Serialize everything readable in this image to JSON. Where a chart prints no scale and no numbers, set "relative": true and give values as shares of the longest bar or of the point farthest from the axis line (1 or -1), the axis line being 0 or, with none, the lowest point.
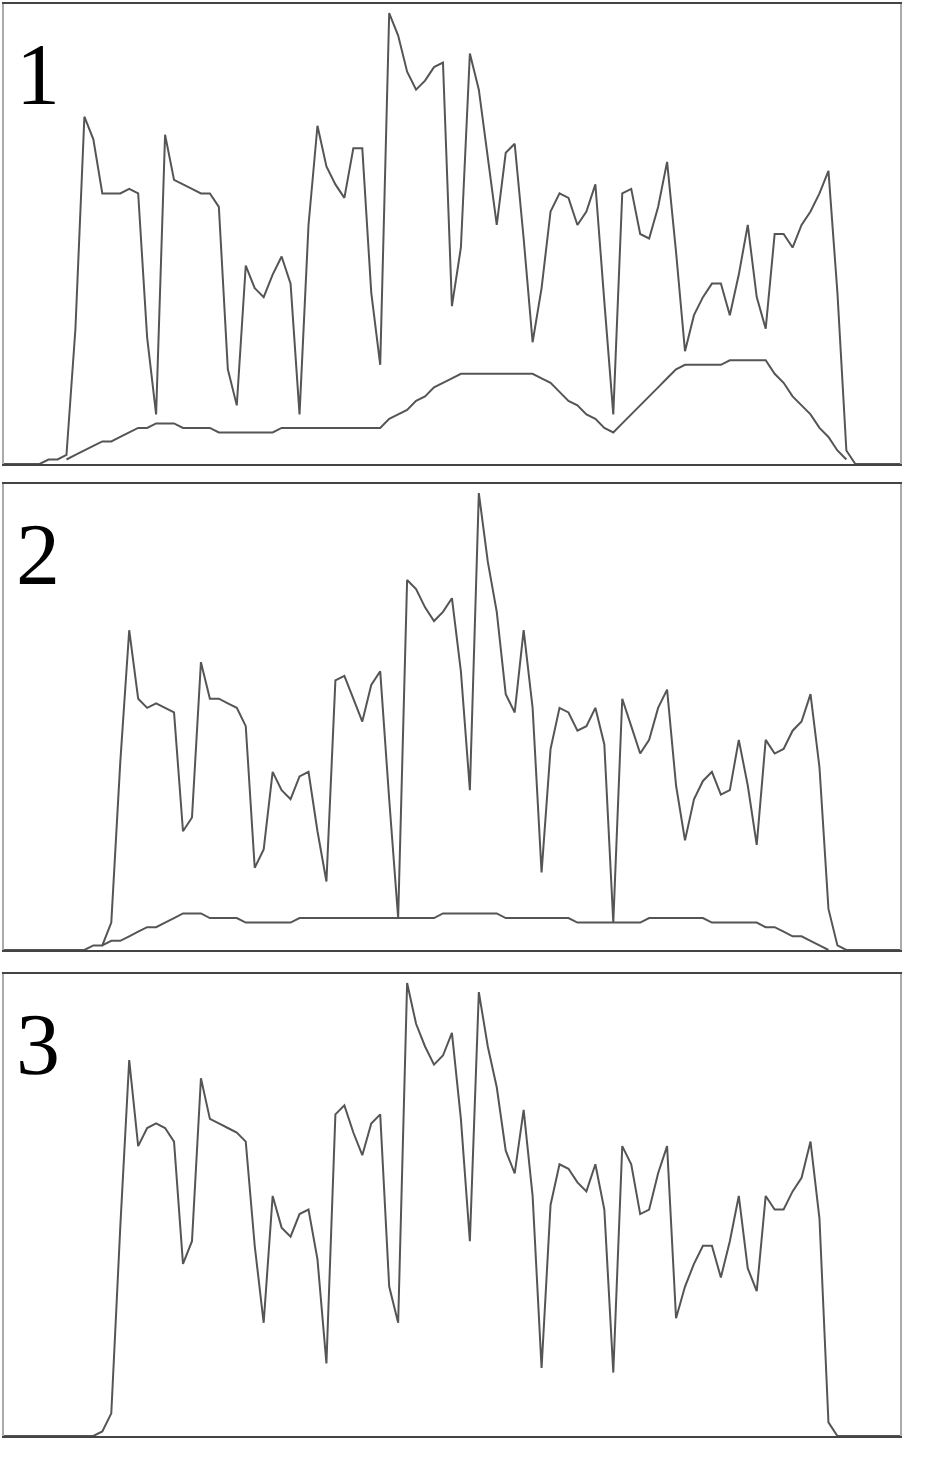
{
  "chart_data": [
    {
      "type": "line",
      "title": "1",
      "relative": true,
      "categories": [
        null,
        null,
        null,
        null,
        null,
        null,
        null,
        null,
        null,
        null,
        null,
        null,
        null,
        null,
        null,
        null,
        null,
        null,
        null,
        null,
        null,
        null,
        null,
        null,
        null,
        null,
        null,
        null,
        null,
        null,
        null,
        null,
        null,
        null,
        null,
        null,
        null,
        null,
        null,
        null,
        null,
        null,
        null,
        null,
        null,
        null,
        null,
        null,
        null,
        null,
        null,
        null,
        null,
        null,
        null,
        null,
        null,
        null,
        null,
        null,
        null,
        null,
        null,
        null,
        null,
        null,
        null,
        null,
        null,
        null,
        null,
        null,
        null,
        null,
        null,
        null,
        null,
        null,
        null,
        null,
        null,
        null,
        null,
        null,
        null,
        null,
        null,
        null,
        null,
        null,
        null,
        null,
        null,
        null,
        null,
        null,
        null,
        null,
        null,
        null,
        null
      ],
      "series": [
        {
          "color": "#555555",
          "values": [
            0,
            0,
            0,
            0,
            0,
            0.01,
            0.01,
            0.02,
            0.3,
            0.77,
            0.72,
            0.6,
            0.6,
            0.6,
            0.61,
            0.6,
            0.28,
            0.11,
            0.73,
            0.63,
            0.62,
            0.61,
            0.6,
            0.6,
            0.57,
            0.21,
            0.13,
            0.44,
            0.39,
            0.37,
            0.42,
            0.46,
            0.4,
            0.11,
            0.53,
            0.75,
            0.66,
            0.62,
            0.59,
            0.7,
            0.7,
            0.38,
            0.22,
            1.0,
            0.95,
            0.87,
            0.83,
            0.85,
            0.88,
            0.89,
            0.35,
            0.48,
            0.91,
            0.83,
            0.68,
            0.53,
            0.69,
            0.71,
            0.5,
            0.27,
            0.39,
            0.56,
            0.6,
            0.59,
            0.53,
            0.56,
            0.62,
            0.36,
            0.11,
            0.6,
            0.61,
            0.51,
            0.5,
            0.57,
            0.67,
            0.47,
            0.25,
            0.33,
            0.37,
            0.4,
            0.4,
            0.33,
            0.42,
            0.53,
            0.37,
            0.3,
            0.51,
            0.51,
            0.48,
            0.53,
            0.56,
            0.6,
            0.65,
            0.38,
            0.03,
            0,
            0,
            0,
            0,
            0,
            0
          ]
        },
        {
          "color": "#555555",
          "values": [
            null,
            null,
            null,
            null,
            null,
            null,
            null,
            0.01,
            0.02,
            0.03,
            0.04,
            0.05,
            0.05,
            0.06,
            0.07,
            0.08,
            0.08,
            0.09,
            0.09,
            0.09,
            0.08,
            0.08,
            0.08,
            0.08,
            0.07,
            0.07,
            0.07,
            0.07,
            0.07,
            0.07,
            0.07,
            0.08,
            0.08,
            0.08,
            0.08,
            0.08,
            0.08,
            0.08,
            0.08,
            0.08,
            0.08,
            0.08,
            0.08,
            0.1,
            0.11,
            0.12,
            0.14,
            0.15,
            0.17,
            0.18,
            0.19,
            0.2,
            0.2,
            0.2,
            0.2,
            0.2,
            0.2,
            0.2,
            0.2,
            0.2,
            0.19,
            0.18,
            0.16,
            0.14,
            0.13,
            0.11,
            0.1,
            0.08,
            0.07,
            0.09,
            0.11,
            0.13,
            0.15,
            0.17,
            0.19,
            0.21,
            0.22,
            0.22,
            0.22,
            0.22,
            0.22,
            0.23,
            0.23,
            0.23,
            0.23,
            0.23,
            0.2,
            0.18,
            0.15,
            0.13,
            0.11,
            0.08,
            0.06,
            0.03,
            0.01,
            null,
            null,
            null,
            null,
            null,
            null
          ]
        }
      ]
    },
    {
      "type": "line",
      "title": "2",
      "relative": true,
      "categories": [
        null,
        null,
        null,
        null,
        null,
        null,
        null,
        null,
        null,
        null,
        null,
        null,
        null,
        null,
        null,
        null,
        null,
        null,
        null,
        null,
        null,
        null,
        null,
        null,
        null,
        null,
        null,
        null,
        null,
        null,
        null,
        null,
        null,
        null,
        null,
        null,
        null,
        null,
        null,
        null,
        null,
        null,
        null,
        null,
        null,
        null,
        null,
        null,
        null,
        null,
        null,
        null,
        null,
        null,
        null,
        null,
        null,
        null,
        null,
        null,
        null,
        null,
        null,
        null,
        null,
        null,
        null,
        null,
        null,
        null,
        null,
        null,
        null,
        null,
        null,
        null,
        null,
        null,
        null,
        null,
        null,
        null,
        null,
        null,
        null,
        null,
        null,
        null,
        null,
        null,
        null,
        null,
        null,
        null,
        null,
        null,
        null,
        null,
        null,
        null,
        null
      ],
      "series": [
        {
          "color": "#555555",
          "values": [
            0,
            0,
            0,
            0,
            0,
            0,
            0,
            0,
            0,
            0,
            0.01,
            0.01,
            0.06,
            0.41,
            0.7,
            0.55,
            0.53,
            0.54,
            0.53,
            0.52,
            0.26,
            0.29,
            0.63,
            0.55,
            0.55,
            0.54,
            0.53,
            0.49,
            0.18,
            0.22,
            0.39,
            0.35,
            0.33,
            0.38,
            0.39,
            0.26,
            0.15,
            0.59,
            0.6,
            0.55,
            0.5,
            0.58,
            0.61,
            0.33,
            0.07,
            0.81,
            0.79,
            0.75,
            0.72,
            0.74,
            0.77,
            0.61,
            0.35,
            1.0,
            0.85,
            0.74,
            0.56,
            0.52,
            0.7,
            0.53,
            0.17,
            0.44,
            0.53,
            0.52,
            0.48,
            0.49,
            0.53,
            0.45,
            0.06,
            0.55,
            0.49,
            0.43,
            0.46,
            0.53,
            0.57,
            0.36,
            0.24,
            0.33,
            0.37,
            0.39,
            0.34,
            0.35,
            0.46,
            0.36,
            0.23,
            0.46,
            0.43,
            0.44,
            0.48,
            0.5,
            0.56,
            0.4,
            0.09,
            0.01,
            0,
            0,
            0,
            0,
            0,
            0,
            0
          ]
        },
        {
          "color": "#555555",
          "values": [
            null,
            null,
            null,
            null,
            null,
            null,
            null,
            null,
            null,
            null,
            null,
            0.01,
            0.02,
            0.02,
            0.03,
            0.04,
            0.05,
            0.05,
            0.06,
            0.07,
            0.08,
            0.08,
            0.08,
            0.07,
            0.07,
            0.07,
            0.07,
            0.06,
            0.06,
            0.06,
            0.06,
            0.06,
            0.06,
            0.07,
            0.07,
            0.07,
            0.07,
            0.07,
            0.07,
            0.07,
            0.07,
            0.07,
            0.07,
            0.07,
            0.07,
            0.07,
            0.07,
            0.07,
            0.07,
            0.08,
            0.08,
            0.08,
            0.08,
            0.08,
            0.08,
            0.08,
            0.07,
            0.07,
            0.07,
            0.07,
            0.07,
            0.07,
            0.07,
            0.07,
            0.06,
            0.06,
            0.06,
            0.06,
            0.06,
            0.06,
            0.06,
            0.06,
            0.07,
            0.07,
            0.07,
            0.07,
            0.07,
            0.07,
            0.07,
            0.06,
            0.06,
            0.06,
            0.06,
            0.06,
            0.06,
            0.05,
            0.05,
            0.04,
            0.03,
            0.03,
            0.02,
            0.01,
            0.0,
            null,
            null,
            null,
            null,
            null,
            null,
            null,
            null
          ]
        }
      ]
    },
    {
      "type": "line",
      "title": "3",
      "relative": true,
      "categories": [
        null,
        null,
        null,
        null,
        null,
        null,
        null,
        null,
        null,
        null,
        null,
        null,
        null,
        null,
        null,
        null,
        null,
        null,
        null,
        null,
        null,
        null,
        null,
        null,
        null,
        null,
        null,
        null,
        null,
        null,
        null,
        null,
        null,
        null,
        null,
        null,
        null,
        null,
        null,
        null,
        null,
        null,
        null,
        null,
        null,
        null,
        null,
        null,
        null,
        null,
        null,
        null,
        null,
        null,
        null,
        null,
        null,
        null,
        null,
        null,
        null,
        null,
        null,
        null,
        null,
        null,
        null,
        null,
        null,
        null,
        null,
        null,
        null,
        null,
        null,
        null,
        null,
        null,
        null,
        null,
        null,
        null,
        null,
        null,
        null,
        null,
        null,
        null,
        null,
        null,
        null,
        null,
        null,
        null,
        null,
        null,
        null,
        null,
        null,
        null,
        null
      ],
      "series": [
        {
          "color": "#555555",
          "values": [
            0,
            0,
            0,
            0,
            0,
            0,
            0,
            0,
            0,
            0,
            0,
            0.01,
            0.05,
            0.46,
            0.83,
            0.64,
            0.68,
            0.69,
            0.68,
            0.65,
            0.38,
            0.43,
            0.79,
            0.7,
            0.69,
            0.68,
            0.67,
            0.65,
            0.42,
            0.25,
            0.53,
            0.46,
            0.44,
            0.49,
            0.5,
            0.39,
            0.16,
            0.71,
            0.73,
            0.67,
            0.62,
            0.69,
            0.71,
            0.33,
            0.25,
            1.0,
            0.91,
            0.86,
            0.82,
            0.84,
            0.89,
            0.7,
            0.43,
            0.98,
            0.86,
            0.77,
            0.63,
            0.58,
            0.72,
            0.53,
            0.15,
            0.51,
            0.6,
            0.59,
            0.56,
            0.54,
            0.6,
            0.5,
            0.14,
            0.64,
            0.6,
            0.49,
            0.5,
            0.58,
            0.64,
            0.26,
            0.33,
            0.38,
            0.42,
            0.42,
            0.35,
            0.43,
            0.53,
            0.37,
            0.32,
            0.53,
            0.5,
            0.5,
            0.54,
            0.57,
            0.65,
            0.48,
            0.03,
            0.0,
            0,
            0,
            0,
            0,
            0,
            0,
            0
          ]
        }
      ]
    }
  ]
}
